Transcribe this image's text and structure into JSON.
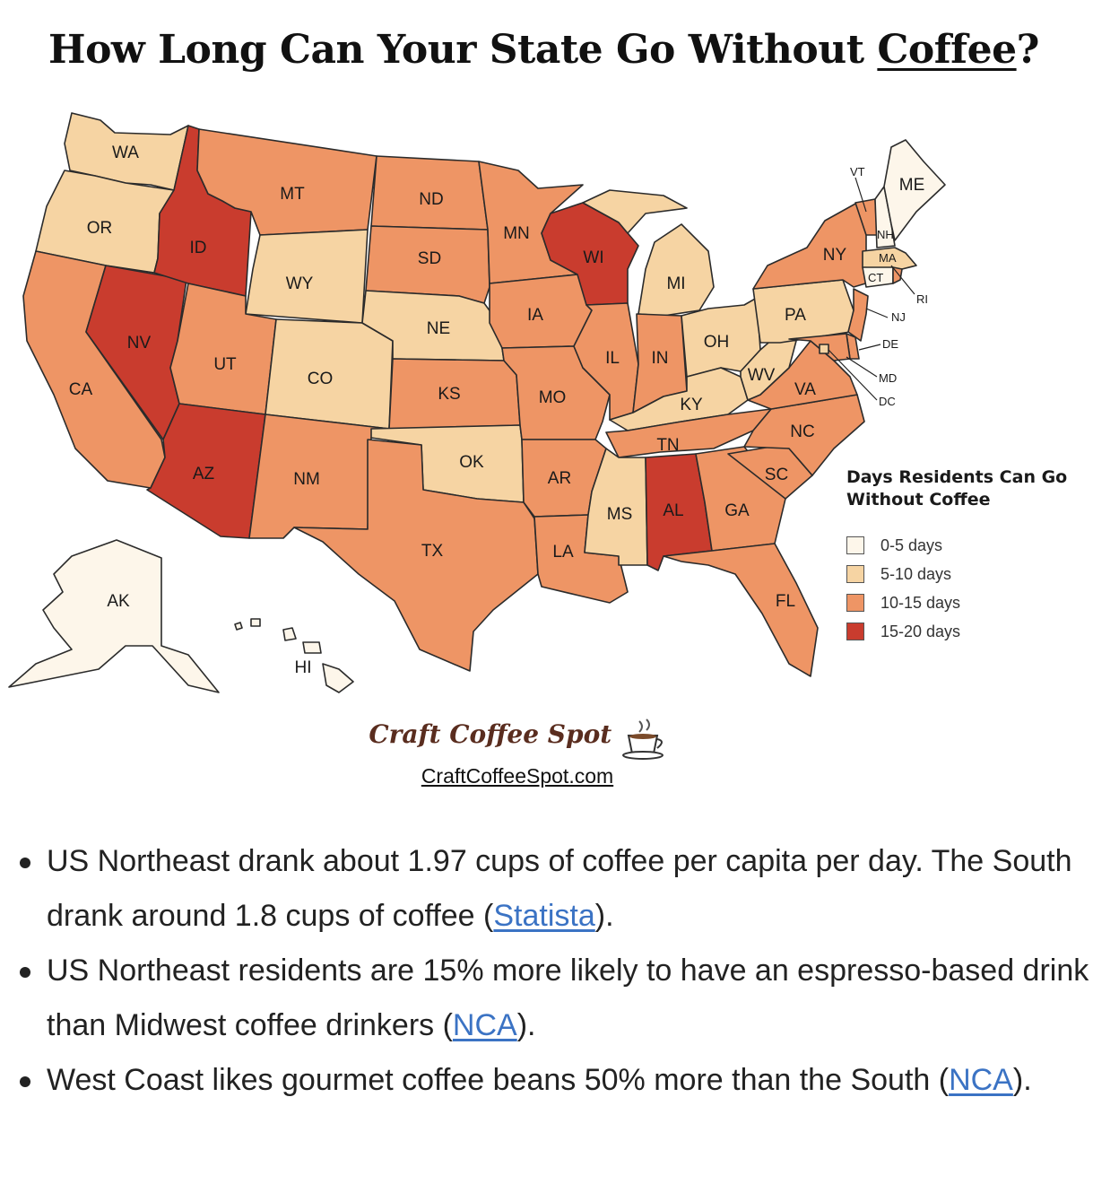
{
  "title": {
    "before": "How Long Can Your State Go Without ",
    "underlined": "Coffee",
    "after": "?"
  },
  "legend": {
    "title": "Days Residents Can Go Without Coffee",
    "items": [
      {
        "label": "0-5 days",
        "color": "#fdf6ea"
      },
      {
        "label": "5-10 days",
        "color": "#f6d4a3"
      },
      {
        "label": "10-15 days",
        "color": "#ee9565"
      },
      {
        "label": "15-20 days",
        "color": "#c93c2e"
      }
    ]
  },
  "states": {
    "WA": {
      "label": "WA",
      "category": "5-10 days"
    },
    "OR": {
      "label": "OR",
      "category": "5-10 days"
    },
    "CA": {
      "label": "CA",
      "category": "10-15 days"
    },
    "NV": {
      "label": "NV",
      "category": "15-20 days"
    },
    "ID": {
      "label": "ID",
      "category": "15-20 days"
    },
    "MT": {
      "label": "MT",
      "category": "10-15 days"
    },
    "WY": {
      "label": "WY",
      "category": "5-10 days"
    },
    "UT": {
      "label": "UT",
      "category": "10-15 days"
    },
    "AZ": {
      "label": "AZ",
      "category": "15-20 days"
    },
    "CO": {
      "label": "CO",
      "category": "5-10 days"
    },
    "NM": {
      "label": "NM",
      "category": "10-15 days"
    },
    "ND": {
      "label": "ND",
      "category": "10-15 days"
    },
    "SD": {
      "label": "SD",
      "category": "10-15 days"
    },
    "NE": {
      "label": "NE",
      "category": "5-10 days"
    },
    "KS": {
      "label": "KS",
      "category": "10-15 days"
    },
    "OK": {
      "label": "OK",
      "category": "5-10 days"
    },
    "TX": {
      "label": "TX",
      "category": "10-15 days"
    },
    "MN": {
      "label": "MN",
      "category": "10-15 days"
    },
    "IA": {
      "label": "IA",
      "category": "10-15 days"
    },
    "MO": {
      "label": "MO",
      "category": "10-15 days"
    },
    "AR": {
      "label": "AR",
      "category": "10-15 days"
    },
    "LA": {
      "label": "LA",
      "category": "10-15 days"
    },
    "WI": {
      "label": "WI",
      "category": "15-20 days"
    },
    "IL": {
      "label": "IL",
      "category": "10-15 days"
    },
    "MI": {
      "label": "MI",
      "category": "5-10 days"
    },
    "IN": {
      "label": "IN",
      "category": "10-15 days"
    },
    "OH": {
      "label": "OH",
      "category": "5-10 days"
    },
    "KY": {
      "label": "KY",
      "category": "5-10 days"
    },
    "TN": {
      "label": "TN",
      "category": "10-15 days"
    },
    "MS": {
      "label": "MS",
      "category": "5-10 days"
    },
    "AL": {
      "label": "AL",
      "category": "15-20 days"
    },
    "GA": {
      "label": "GA",
      "category": "10-15 days"
    },
    "FL": {
      "label": "FL",
      "category": "10-15 days"
    },
    "SC": {
      "label": "SC",
      "category": "10-15 days"
    },
    "NC": {
      "label": "NC",
      "category": "10-15 days"
    },
    "VA": {
      "label": "VA",
      "category": "10-15 days"
    },
    "WV": {
      "label": "WV",
      "category": "5-10 days"
    },
    "PA": {
      "label": "PA",
      "category": "5-10 days"
    },
    "NY": {
      "label": "NY",
      "category": "10-15 days"
    },
    "VT": {
      "label": "VT",
      "category": "10-15 days"
    },
    "NH": {
      "label": "NH",
      "category": "0-5 days"
    },
    "ME": {
      "label": "ME",
      "category": "0-5 days"
    },
    "MA": {
      "label": "MA",
      "category": "5-10 days"
    },
    "RI": {
      "label": "RI",
      "category": "10-15 days"
    },
    "CT": {
      "label": "CT",
      "category": "0-5 days"
    },
    "NJ": {
      "label": "NJ",
      "category": "10-15 days"
    },
    "DE": {
      "label": "DE",
      "category": "10-15 days"
    },
    "MD": {
      "label": "MD",
      "category": "10-15 days"
    },
    "DC": {
      "label": "DC",
      "category": "5-10 days"
    },
    "AK": {
      "label": "AK",
      "category": "0-5 days"
    },
    "HI": {
      "label": "HI",
      "category": "0-5 days"
    }
  },
  "brand": {
    "name": "Craft Coffee Spot",
    "url": "CraftCoffeeSpot.com"
  },
  "bullets": [
    {
      "text": "US Northeast drank about 1.97 cups of coffee per capita per day. The South drank around 1.8 cups of coffee (",
      "link": "Statista",
      "after": ")."
    },
    {
      "text": "US Northeast residents are 15% more likely to have an espresso-based drink than Midwest coffee drinkers (",
      "link": "NCA",
      "after": ")."
    },
    {
      "text": "West Coast likes gourmet coffee beans 50% more than the South (",
      "link": "NCA",
      "after": ")."
    }
  ]
}
